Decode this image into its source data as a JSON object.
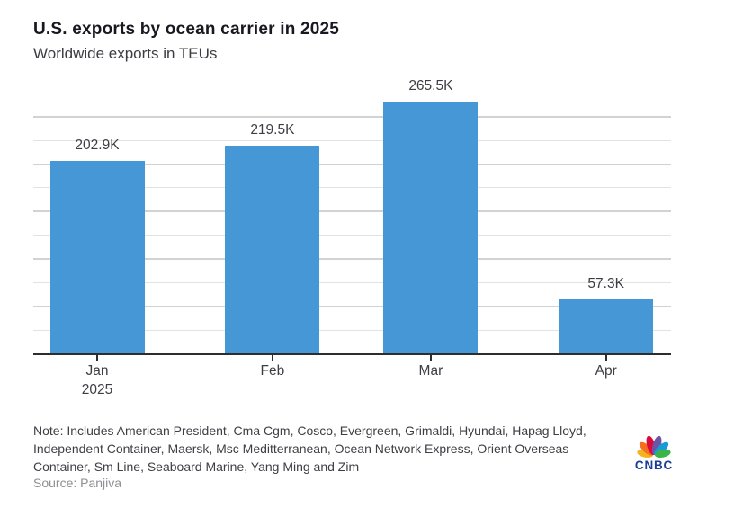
{
  "chart_data": {
    "type": "bar",
    "title": "U.S. exports by ocean carrier in 2025",
    "subtitle": "Worldwide exports in TEUs",
    "categories": [
      "Jan 2025",
      "Feb",
      "Mar",
      "Apr"
    ],
    "tick_labels": [
      [
        "Jan",
        "2025"
      ],
      [
        "Feb"
      ],
      [
        "Mar"
      ],
      [
        "Apr"
      ]
    ],
    "x_day_offsets": [
      0,
      31,
      59,
      90
    ],
    "x_domain_days": [
      -11.3,
      101.5
    ],
    "values": [
      202.9,
      219.5,
      265.5,
      57.3
    ],
    "value_labels": [
      "202.9K",
      "219.5K",
      "265.5K",
      "57.3K"
    ],
    "unit": "TEUs (thousands)",
    "ylim": [
      0,
      250
    ],
    "grid_interval": 25,
    "grid_major_interval": 50,
    "grid_on": true,
    "legend": false,
    "bar_color": "#4697d6",
    "axis_color": "#2d2d2d",
    "grid_minor_color": "#e3e3e3",
    "grid_major_color": "#d2d2d2"
  },
  "footer": {
    "note": "Note: Includes American President, Cma Cgm, Cosco, Evergreen, Grimaldi, Hyundai, Hapag Lloyd, Independent Container, Maersk, Msc Meditterranean, Ocean Network Express, Orient Overseas Container, Sm Line, Seaboard Marine, Yang Ming and Zim",
    "source": "Source: Panjiva",
    "logo_text": "CNBC",
    "logo_colors": {
      "yellow": "#f5b41f",
      "orange": "#f4701f",
      "red": "#dc0a3c",
      "purple": "#6e55a3",
      "blue": "#199bd7",
      "green": "#3bb54a",
      "wordmark": "#1a3e94"
    }
  }
}
